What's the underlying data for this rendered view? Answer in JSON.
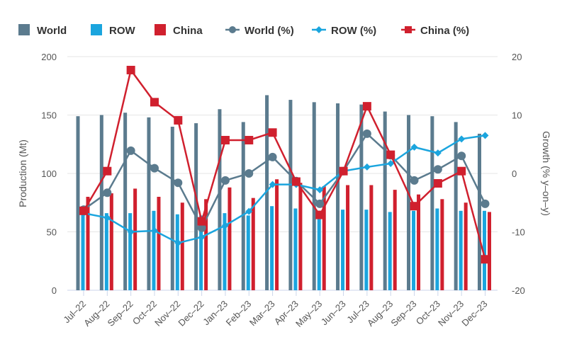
{
  "chart_data": {
    "type": "bar+line",
    "categories": [
      "Jul–22",
      "Aug–22",
      "Sep–22",
      "Oct–22",
      "Nov–22",
      "Dec–22",
      "Jan–23",
      "Feb–23",
      "Mar–23",
      "Apr–23",
      "May–23",
      "Jun–23",
      "Jul–23",
      "Aug–23",
      "Sep–23",
      "Oct–23",
      "Nov–23",
      "Dec–23"
    ],
    "ylabel": "Production (Mt)",
    "y2label": "Growth (% y–on–y)",
    "ylim": [
      0,
      200
    ],
    "y2lim": [
      -20,
      20
    ],
    "yticks": [
      0,
      50,
      100,
      150,
      200
    ],
    "y2ticks": [
      -20,
      -10,
      0,
      10,
      20
    ],
    "grid": true,
    "legend_position": "top",
    "series": [
      {
        "name": "World",
        "type": "bar",
        "axis": "left",
        "color": "#5b7b8e",
        "values": [
          149,
          150,
          152,
          148,
          140,
          143,
          155,
          144,
          167,
          163,
          161,
          160,
          159,
          153,
          150,
          149,
          144,
          134
        ]
      },
      {
        "name": "ROW",
        "type": "bar",
        "axis": "left",
        "color": "#1ba5de",
        "values": [
          67,
          66,
          66,
          68,
          65,
          64,
          66,
          64,
          72,
          70,
          66,
          69,
          69,
          67,
          68,
          70,
          68,
          68
        ]
      },
      {
        "name": "China",
        "type": "bar",
        "axis": "left",
        "color": "#d0202e",
        "values": [
          80,
          83,
          87,
          80,
          75,
          78,
          88,
          79,
          95,
          92,
          89,
          90,
          90,
          86,
          82,
          78,
          75,
          67
        ]
      },
      {
        "name": "World (%)",
        "type": "line",
        "marker": "circle",
        "axis": "right",
        "color": "#5b7b8e",
        "values": [
          -6.2,
          -3.3,
          3.9,
          0.9,
          -1.6,
          -9.3,
          -1.2,
          0.0,
          2.8,
          -1.3,
          -5.2,
          0.4,
          6.8,
          3.1,
          -1.2,
          0.7,
          3.0,
          -5.2
        ]
      },
      {
        "name": "ROW (%)",
        "type": "line",
        "marker": "diamond",
        "axis": "right",
        "color": "#1ba5de",
        "values": [
          -6.8,
          -7.6,
          -10.0,
          -9.8,
          -11.9,
          -10.9,
          -8.9,
          -6.5,
          -1.9,
          -1.9,
          -2.8,
          0.4,
          1.1,
          1.7,
          4.5,
          3.5,
          5.9,
          6.5
        ]
      },
      {
        "name": "China (%)",
        "type": "line",
        "marker": "square",
        "axis": "right",
        "color": "#d0202e",
        "values": [
          -6.4,
          0.4,
          17.7,
          12.2,
          9.1,
          -8.2,
          5.7,
          5.7,
          7.0,
          -1.4,
          -7.1,
          0.4,
          11.5,
          3.2,
          -5.6,
          -1.7,
          0.4,
          -14.7
        ]
      }
    ]
  }
}
